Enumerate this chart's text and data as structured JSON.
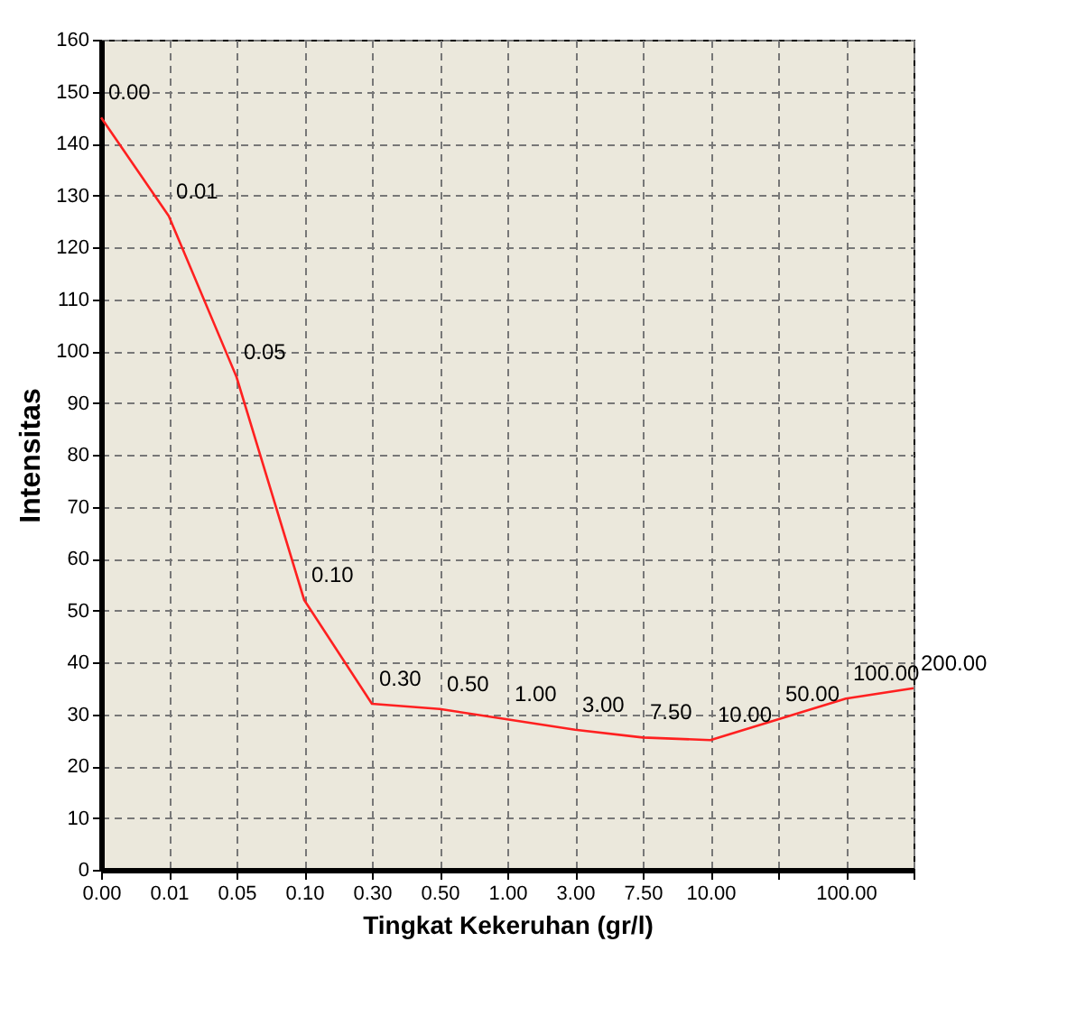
{
  "chart_data": {
    "type": "line",
    "xlabel": "Tingkat Kekeruhan (gr/l)",
    "ylabel": "Intensitas",
    "categories": [
      "0.00",
      "0.01",
      "0.05",
      "0.10",
      "0.30",
      "0.50",
      "1.00",
      "3.00",
      "7.50",
      "10.00",
      null,
      "100.00",
      null
    ],
    "series": [
      {
        "color": "#ff2020",
        "values": [
          145,
          126,
          95,
          52,
          32,
          31,
          29,
          27,
          25.5,
          25,
          29,
          33,
          35
        ]
      }
    ],
    "annotations": [
      {
        "text": "0.00",
        "x": "0.00",
        "y": 145
      },
      {
        "text": "0.01",
        "x": "0.01",
        "y": 126
      },
      {
        "text": "0.05",
        "x": "0.05",
        "y": 95
      },
      {
        "text": "0.10",
        "x": "0.10",
        "y": 52
      },
      {
        "text": "0.30",
        "x": "0.30",
        "y": 32
      },
      {
        "text": "0.50",
        "x": "0.50",
        "y": 31
      },
      {
        "text": "1.00",
        "x": "1.00",
        "y": 29
      },
      {
        "text": "3.00",
        "x": "3.00",
        "y": 27
      },
      {
        "text": "7.50",
        "x": "7.50",
        "y": 25.5
      },
      {
        "text": "10.00",
        "x": "10.00",
        "y": 25
      },
      "50.00",
      {
        "text": "100.00",
        "x": "100.00",
        "y": 33
      },
      "200.00"
    ],
    "ylim": [
      0,
      160
    ],
    "yticks": [
      0,
      10,
      20,
      30,
      40,
      50,
      60,
      70,
      80,
      90,
      100,
      110,
      120,
      130,
      140,
      150,
      160
    ],
    "grid": true,
    "marker": "none",
    "line_style": "solid"
  }
}
